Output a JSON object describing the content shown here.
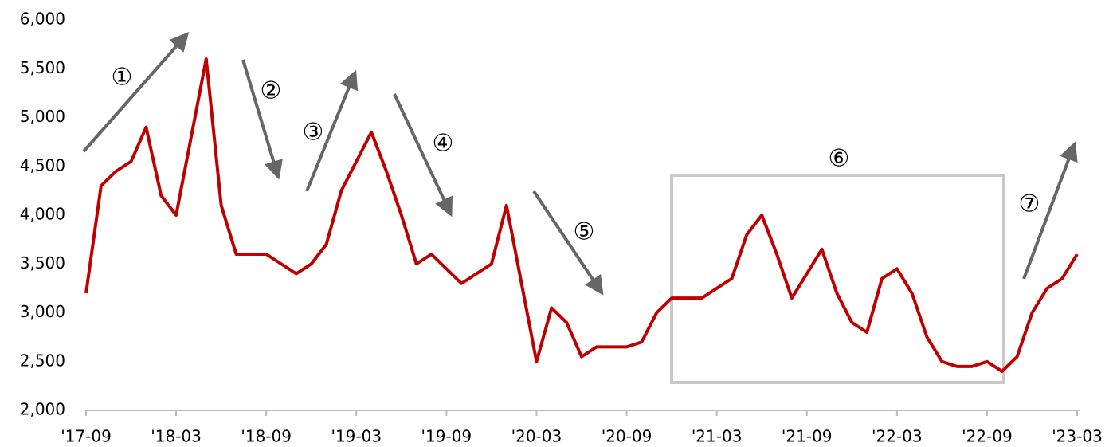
{
  "chart_data": {
    "type": "line",
    "categories": [
      "'17-09",
      null,
      null,
      null,
      null,
      null,
      "'18-03",
      null,
      null,
      null,
      null,
      null,
      "'18-09",
      null,
      null,
      null,
      null,
      null,
      "'19-03",
      null,
      null,
      null,
      null,
      null,
      "'19-09",
      null,
      null,
      null,
      null,
      null,
      "'20-03",
      null,
      null,
      null,
      null,
      null,
      "'20-09",
      null,
      null,
      null,
      null,
      null,
      "'21-03",
      null,
      null,
      null,
      null,
      null,
      "'21-09",
      null,
      null,
      null,
      null,
      null,
      "'22-03",
      null,
      null,
      null,
      null,
      null,
      "'22-09",
      null,
      null,
      null,
      null,
      null,
      "'23-03"
    ],
    "series": [
      {
        "color": "#c00000",
        "values": [
          3200,
          4300,
          4450,
          4550,
          4900,
          4200,
          4000,
          4800,
          5600,
          4100,
          3600,
          3600,
          3600,
          3500,
          3400,
          3500,
          3700,
          4250,
          4550,
          4850,
          4450,
          4000,
          3500,
          3600,
          3450,
          3300,
          3400,
          3500,
          4100,
          3300,
          2500,
          3050,
          2900,
          2550,
          2650,
          2650,
          2650,
          2700,
          3000,
          3150,
          3150,
          3150,
          3250,
          3350,
          3800,
          4000,
          3600,
          3150,
          3400,
          3650,
          3200,
          2900,
          2800,
          3350,
          3450,
          3200,
          2750,
          2500,
          2450,
          2450,
          2500,
          2400,
          2550,
          3000,
          3250,
          3350,
          3600
        ]
      }
    ],
    "ylim": [
      2000,
      6000
    ],
    "yticks": [
      {
        "value": 2000,
        "label": "2,000"
      },
      {
        "value": 2500,
        "label": "2,500"
      },
      {
        "value": 3000,
        "label": "3,000"
      },
      {
        "value": 3500,
        "label": "3,500"
      },
      {
        "value": 4000,
        "label": "4,000"
      },
      {
        "value": 4500,
        "label": "4,500"
      },
      {
        "value": 5000,
        "label": "5,000"
      },
      {
        "value": 5500,
        "label": "5,500"
      },
      {
        "value": 6000,
        "label": "6,000"
      }
    ],
    "grid": false,
    "annotations": [
      "①",
      "②",
      "③",
      "④",
      "⑤",
      "⑥",
      "⑦"
    ]
  }
}
